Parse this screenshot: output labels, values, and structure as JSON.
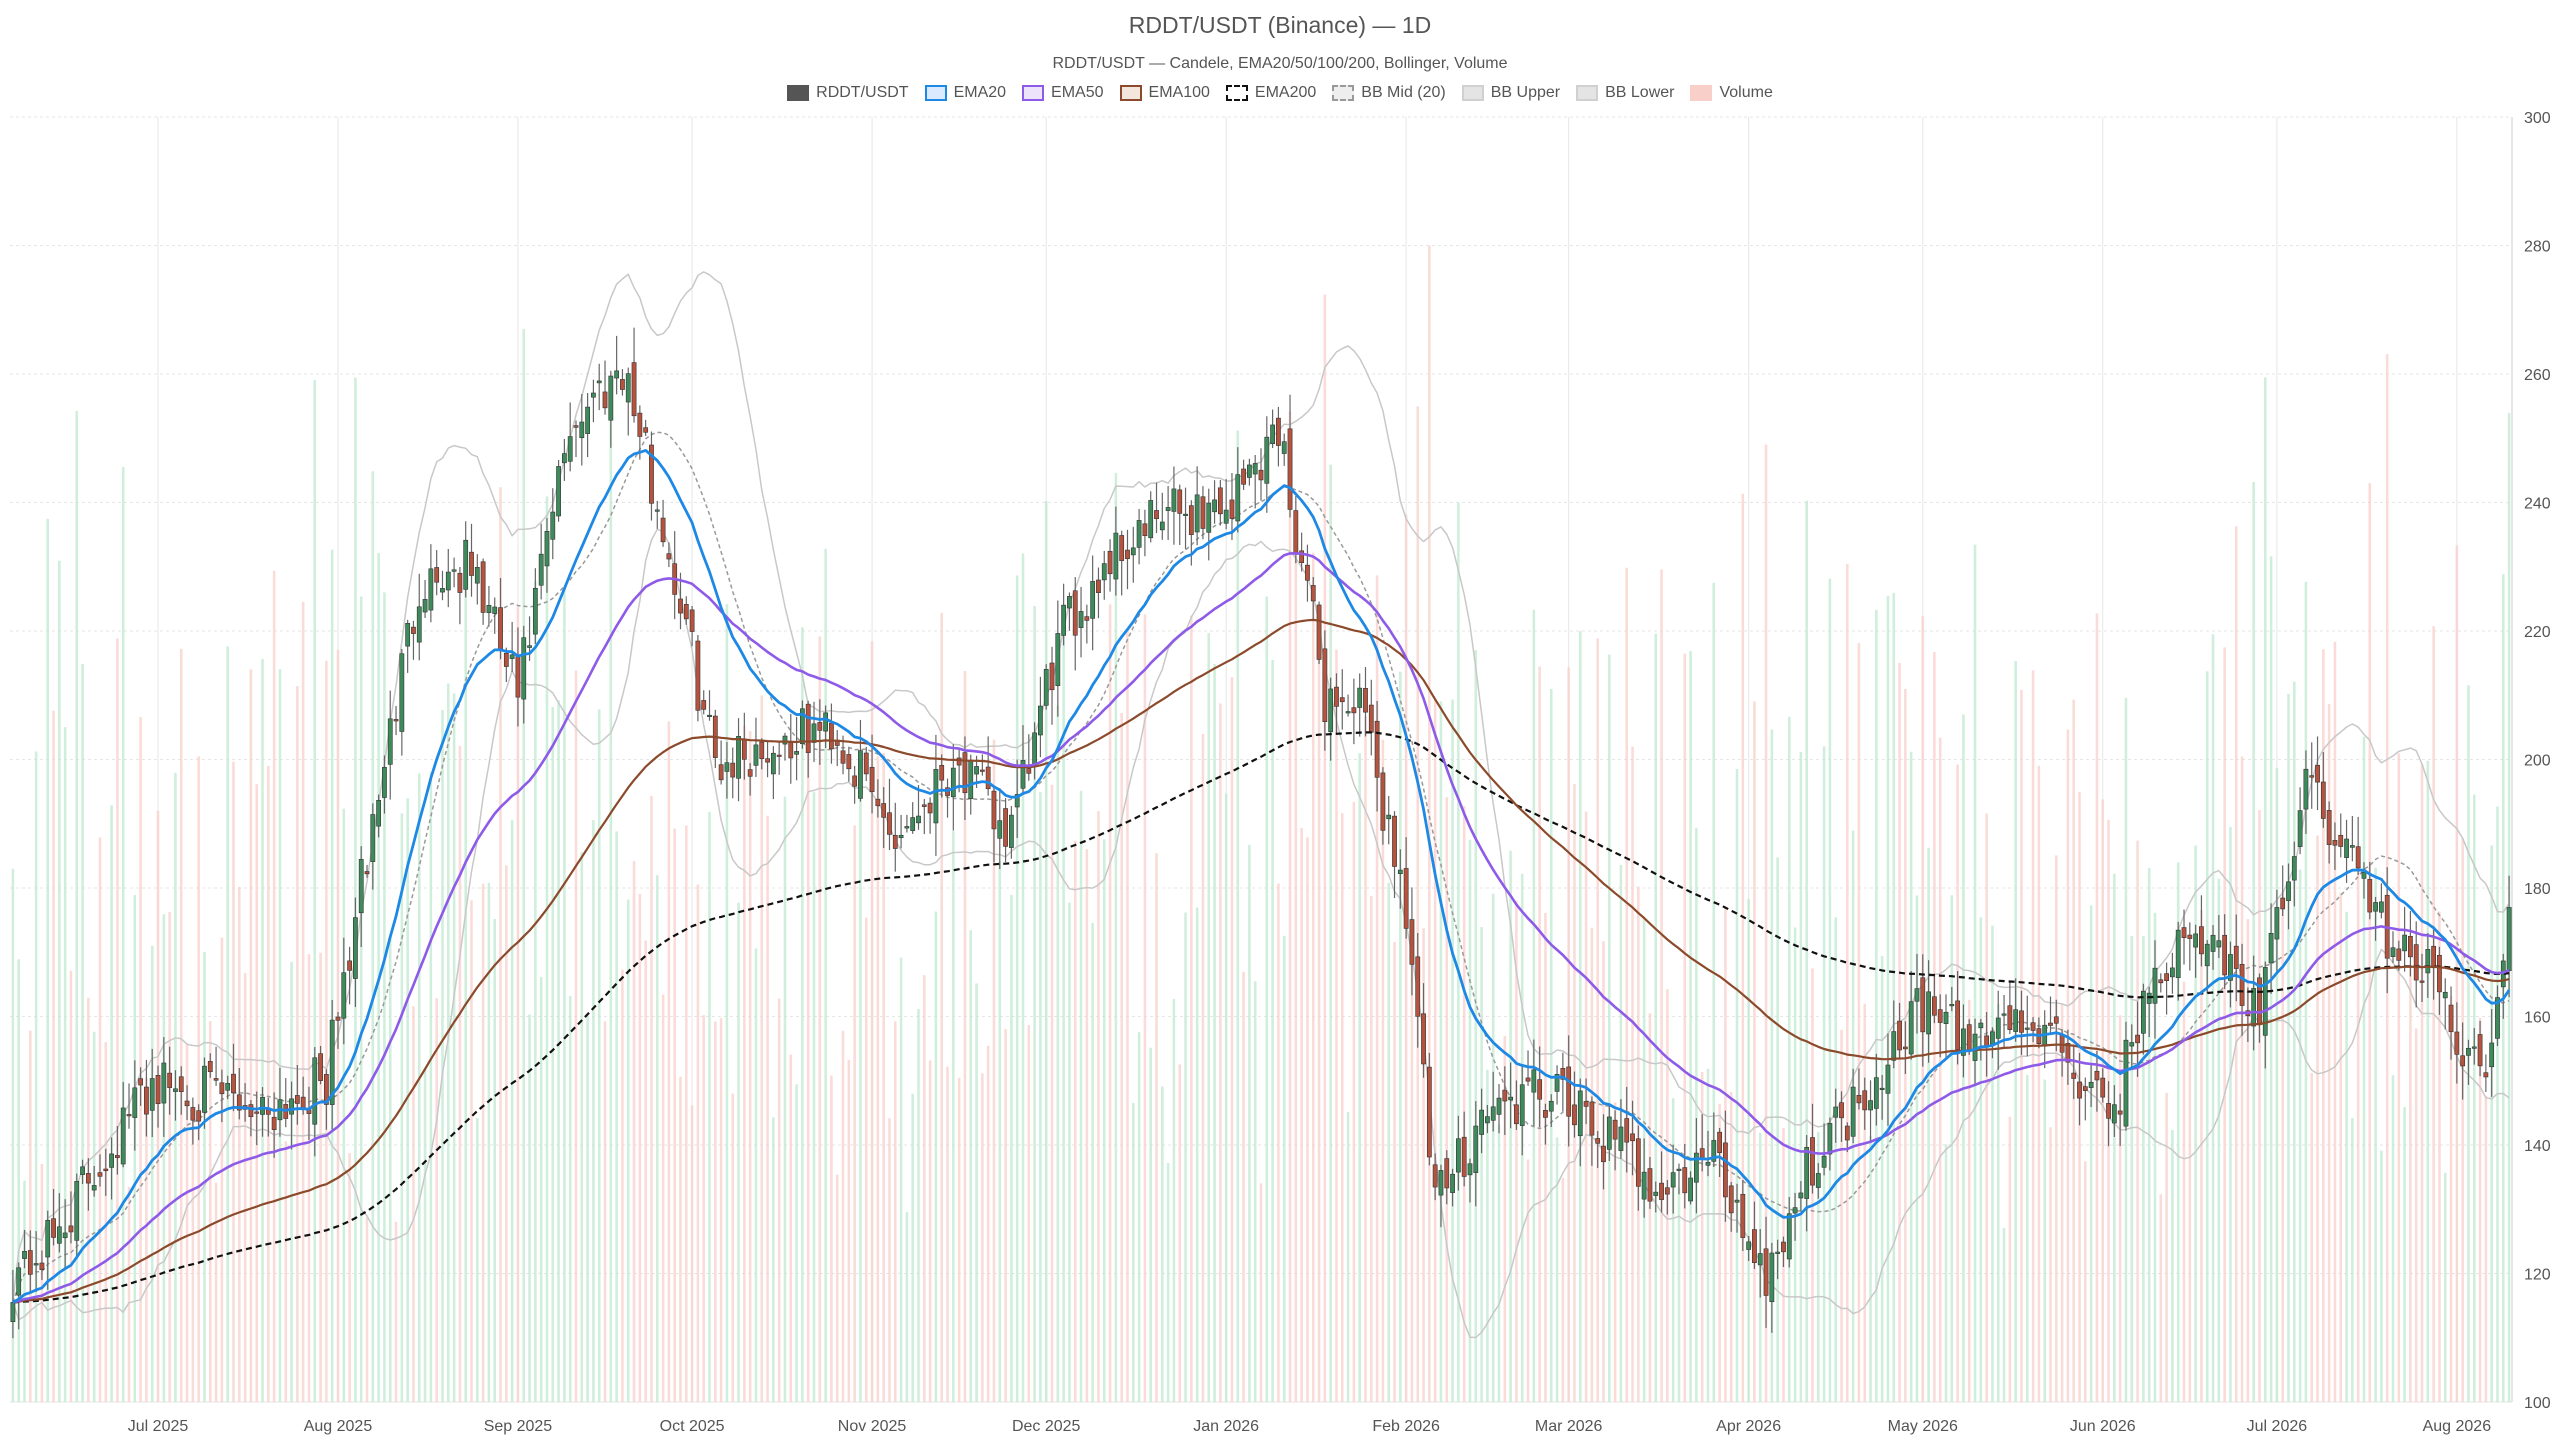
{
  "title": "RDDT/USDT (Binance) — 1D",
  "subtitle": "RDDT/USDT — Candele, EMA20/50/100/200, Bollinger, Volume",
  "legend": [
    {
      "label": "RDDT/USDT",
      "fill": "#555555",
      "border": "#555555",
      "dash": false
    },
    {
      "label": "EMA20",
      "fill": "#dbeafe",
      "border": "#1e88e5",
      "dash": false
    },
    {
      "label": "EMA50",
      "fill": "#ede4fb",
      "border": "#8e5ae8",
      "dash": false
    },
    {
      "label": "EMA100",
      "fill": "#f3e6dc",
      "border": "#8b4a2b",
      "dash": false
    },
    {
      "label": "EMA200",
      "fill": "#ffffff",
      "border": "#111111",
      "dash": true
    },
    {
      "label": "BB Mid (20)",
      "fill": "#eeeeee",
      "border": "#999999",
      "dash": true
    },
    {
      "label": "BB Upper",
      "fill": "#e4e4e4",
      "border": "#d0d0d0",
      "dash": false
    },
    {
      "label": "BB Lower",
      "fill": "#e4e4e4",
      "border": "#d0d0d0",
      "dash": false
    },
    {
      "label": "Volume",
      "fill": "#f8cfc9",
      "border": "#f8cfc9",
      "dash": false
    }
  ],
  "colors": {
    "up": "#3d8b5a",
    "down": "#b5533e",
    "wick": "#666666",
    "ema20": "#1e88e5",
    "ema50": "#8e5ae8",
    "ema100": "#8b4a2b",
    "ema200": "#111111",
    "bb_mid": "#999999",
    "bb_band": "#c8c8c8",
    "vol_up": "#bfe8cf",
    "vol_down": "#f8cfc9",
    "grid": "#e6e6e6"
  },
  "chart_data": {
    "type": "candlestick",
    "y_axis": {
      "min": 100,
      "max": 300,
      "ticks": [
        100,
        120,
        140,
        160,
        180,
        200,
        220,
        240,
        260,
        280,
        300
      ],
      "position": "right"
    },
    "x_axis": {
      "ticks": [
        "Jul 2025",
        "Aug 2025",
        "Sep 2025",
        "Oct 2025",
        "Nov 2025",
        "Dec 2025",
        "Jan 2026",
        "Feb 2026",
        "Mar 2026",
        "Apr 2026",
        "May 2026",
        "Jun 2026",
        "Jul 2026",
        "Aug 2026"
      ]
    },
    "grid": true,
    "legend_position": "top",
    "close_anchors": [
      [
        "2025-06-06",
        120
      ],
      [
        "2025-06-12",
        124
      ],
      [
        "2025-06-20",
        136
      ],
      [
        "2025-06-30",
        150
      ],
      [
        "2025-07-08",
        148
      ],
      [
        "2025-07-20",
        146
      ],
      [
        "2025-07-30",
        150
      ],
      [
        "2025-08-06",
        185
      ],
      [
        "2025-08-15",
        228
      ],
      [
        "2025-08-24",
        230
      ],
      [
        "2025-09-01",
        210
      ],
      [
        "2025-09-10",
        252
      ],
      [
        "2025-09-19",
        262
      ],
      [
        "2025-09-27",
        232
      ],
      [
        "2025-10-05",
        200
      ],
      [
        "2025-10-15",
        202
      ],
      [
        "2025-10-25",
        205
      ],
      [
        "2025-11-05",
        188
      ],
      [
        "2025-11-15",
        200
      ],
      [
        "2025-11-25",
        188
      ],
      [
        "2025-12-03",
        218
      ],
      [
        "2025-12-12",
        232
      ],
      [
        "2025-12-22",
        238
      ],
      [
        "2026-01-02",
        240
      ],
      [
        "2026-01-10",
        252
      ],
      [
        "2026-01-18",
        210
      ],
      [
        "2026-01-24",
        208
      ],
      [
        "2026-02-01",
        178
      ],
      [
        "2026-02-06",
        130
      ],
      [
        "2026-02-14",
        145
      ],
      [
        "2026-02-25",
        148
      ],
      [
        "2026-03-06",
        142
      ],
      [
        "2026-03-18",
        133
      ],
      [
        "2026-03-26",
        138
      ],
      [
        "2026-04-04",
        120
      ],
      [
        "2026-04-12",
        138
      ],
      [
        "2026-04-22",
        150
      ],
      [
        "2026-04-30",
        162
      ],
      [
        "2026-05-08",
        156
      ],
      [
        "2026-05-16",
        160
      ],
      [
        "2026-05-25",
        155
      ],
      [
        "2026-06-02",
        143
      ],
      [
        "2026-06-10",
        168
      ],
      [
        "2026-06-20",
        172
      ],
      [
        "2026-06-28",
        160
      ],
      [
        "2026-07-06",
        196
      ],
      [
        "2026-07-12",
        188
      ],
      [
        "2026-07-16",
        180
      ],
      [
        "2026-07-22",
        170
      ],
      [
        "2026-07-30",
        164
      ],
      [
        "2026-08-03",
        152
      ],
      [
        "2026-08-06",
        155
      ],
      [
        "2026-08-10",
        176
      ]
    ],
    "volume_scale": {
      "max": 100,
      "y_bottom_value": 100,
      "y_top_value": 300
    }
  }
}
